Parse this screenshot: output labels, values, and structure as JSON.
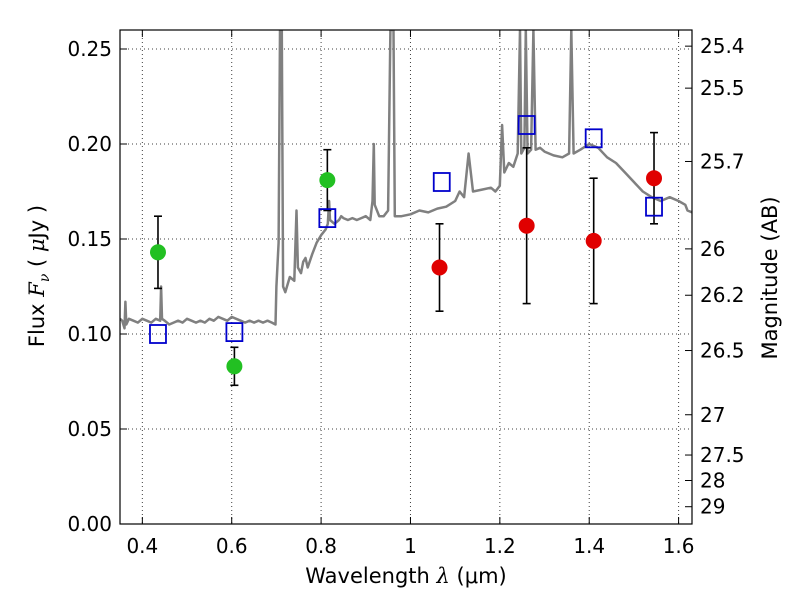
{
  "chart_data": {
    "type": "scatter",
    "title": "",
    "xlabel": "Wavelength  λ (μm)",
    "xlabel_parts": {
      "text": "Wavelength  ",
      "sym": "λ",
      "unit": "(μm)"
    },
    "ylabel": "Flux  Fν  (μJy)",
    "ylabel_parts": {
      "text": "Flux  ",
      "sym": "F",
      "sub": "ν",
      "paren_open": "(",
      "mu": "μ",
      "unit": "Jy",
      "paren_close": ")"
    },
    "y2label": "Magnitude (AB)",
    "xlim": [
      0.35,
      1.63
    ],
    "ylim": [
      0.0,
      0.26
    ],
    "xticks": [
      0.4,
      0.6,
      0.8,
      1.0,
      1.2,
      1.4,
      1.6
    ],
    "xtick_labels": [
      "0.4",
      "0.6",
      "0.8",
      "1",
      "1.2",
      "1.4",
      "1.6"
    ],
    "yticks": [
      0.0,
      0.05,
      0.1,
      0.15,
      0.2,
      0.25
    ],
    "ytick_labels": [
      "0.00",
      "0.05",
      "0.10",
      "0.15",
      "0.20",
      "0.25"
    ],
    "magnitude_ticks": [
      {
        "label": "25.4",
        "flux": 0.2515
      },
      {
        "label": "25.5",
        "flux": 0.2294
      },
      {
        "label": "25.7",
        "flux": 0.1908
      },
      {
        "label": "26",
        "flux": 0.1448
      },
      {
        "label": "26.2",
        "flux": 0.1204
      },
      {
        "label": "26.5",
        "flux": 0.0913
      },
      {
        "label": "27",
        "flux": 0.0575
      },
      {
        "label": "27.5",
        "flux": 0.0363
      },
      {
        "label": "28",
        "flux": 0.0229
      },
      {
        "label": "29",
        "flux": 0.0091
      }
    ],
    "grid": true,
    "colors": {
      "model": "#808080",
      "green": "#22c022",
      "red": "#e00000",
      "box": "#0000cc",
      "errorbar": "#000000"
    },
    "series": [
      {
        "marker": "circle",
        "color": "#22c022",
        "points": [
          {
            "x": 0.435,
            "y": 0.143,
            "err": 0.019
          },
          {
            "x": 0.606,
            "y": 0.083,
            "err": 0.01
          },
          {
            "x": 0.814,
            "y": 0.181,
            "err": 0.016
          }
        ]
      },
      {
        "marker": "circle",
        "color": "#e00000",
        "points": [
          {
            "x": 1.065,
            "y": 0.135,
            "err": 0.023
          },
          {
            "x": 1.26,
            "y": 0.157,
            "err": 0.041
          },
          {
            "x": 1.41,
            "y": 0.149,
            "err": 0.033
          },
          {
            "x": 1.545,
            "y": 0.182,
            "err": 0.024
          }
        ]
      },
      {
        "marker": "square",
        "color": "#0000cc",
        "points": [
          {
            "x": 0.435,
            "y": 0.1
          },
          {
            "x": 0.606,
            "y": 0.101
          },
          {
            "x": 0.814,
            "y": 0.161
          },
          {
            "x": 1.07,
            "y": 0.18
          },
          {
            "x": 1.26,
            "y": 0.21
          },
          {
            "x": 1.41,
            "y": 0.203
          },
          {
            "x": 1.545,
            "y": 0.167
          }
        ]
      },
      {
        "marker": "line",
        "color": "#808080",
        "points": [
          [
            0.35,
            0.108
          ],
          [
            0.355,
            0.107
          ],
          [
            0.36,
            0.103
          ],
          [
            0.362,
            0.117
          ],
          [
            0.364,
            0.105
          ],
          [
            0.37,
            0.108
          ],
          [
            0.38,
            0.107
          ],
          [
            0.39,
            0.106
          ],
          [
            0.4,
            0.108
          ],
          [
            0.41,
            0.107
          ],
          [
            0.42,
            0.106
          ],
          [
            0.43,
            0.108
          ],
          [
            0.44,
            0.107
          ],
          [
            0.442,
            0.125
          ],
          [
            0.444,
            0.108
          ],
          [
            0.45,
            0.107
          ],
          [
            0.46,
            0.105
          ],
          [
            0.47,
            0.106
          ],
          [
            0.48,
            0.107
          ],
          [
            0.49,
            0.106
          ],
          [
            0.5,
            0.108
          ],
          [
            0.51,
            0.107
          ],
          [
            0.52,
            0.106
          ],
          [
            0.53,
            0.107
          ],
          [
            0.54,
            0.106
          ],
          [
            0.55,
            0.108
          ],
          [
            0.56,
            0.107
          ],
          [
            0.57,
            0.109
          ],
          [
            0.58,
            0.108
          ],
          [
            0.59,
            0.107
          ],
          [
            0.6,
            0.109
          ],
          [
            0.61,
            0.108
          ],
          [
            0.62,
            0.107
          ],
          [
            0.63,
            0.106
          ],
          [
            0.64,
            0.107
          ],
          [
            0.65,
            0.106
          ],
          [
            0.66,
            0.107
          ],
          [
            0.67,
            0.106
          ],
          [
            0.68,
            0.107
          ],
          [
            0.69,
            0.106
          ],
          [
            0.698,
            0.105
          ],
          [
            0.7,
            0.125
          ],
          [
            0.705,
            0.148
          ],
          [
            0.708,
            0.26
          ],
          [
            0.712,
            0.26
          ],
          [
            0.715,
            0.125
          ],
          [
            0.72,
            0.122
          ],
          [
            0.73,
            0.13
          ],
          [
            0.74,
            0.128
          ],
          [
            0.745,
            0.165
          ],
          [
            0.748,
            0.135
          ],
          [
            0.755,
            0.132
          ],
          [
            0.76,
            0.138
          ],
          [
            0.765,
            0.14
          ],
          [
            0.77,
            0.135
          ],
          [
            0.78,
            0.142
          ],
          [
            0.79,
            0.148
          ],
          [
            0.8,
            0.152
          ],
          [
            0.81,
            0.155
          ],
          [
            0.815,
            0.158
          ],
          [
            0.818,
            0.17
          ],
          [
            0.82,
            0.16
          ],
          [
            0.83,
            0.158
          ],
          [
            0.84,
            0.16
          ],
          [
            0.845,
            0.162
          ],
          [
            0.85,
            0.161
          ],
          [
            0.86,
            0.16
          ],
          [
            0.87,
            0.161
          ],
          [
            0.88,
            0.16
          ],
          [
            0.89,
            0.161
          ],
          [
            0.9,
            0.162
          ],
          [
            0.91,
            0.16
          ],
          [
            0.915,
            0.17
          ],
          [
            0.918,
            0.2
          ],
          [
            0.92,
            0.168
          ],
          [
            0.93,
            0.162
          ],
          [
            0.94,
            0.162
          ],
          [
            0.95,
            0.165
          ],
          [
            0.955,
            0.26
          ],
          [
            0.962,
            0.26
          ],
          [
            0.965,
            0.162
          ],
          [
            0.98,
            0.162
          ],
          [
            1.0,
            0.163
          ],
          [
            1.02,
            0.165
          ],
          [
            1.04,
            0.164
          ],
          [
            1.06,
            0.166
          ],
          [
            1.08,
            0.167
          ],
          [
            1.1,
            0.17
          ],
          [
            1.11,
            0.175
          ],
          [
            1.12,
            0.172
          ],
          [
            1.13,
            0.195
          ],
          [
            1.14,
            0.175
          ],
          [
            1.16,
            0.176
          ],
          [
            1.18,
            0.177
          ],
          [
            1.19,
            0.175
          ],
          [
            1.2,
            0.178
          ],
          [
            1.205,
            0.21
          ],
          [
            1.21,
            0.185
          ],
          [
            1.22,
            0.19
          ],
          [
            1.23,
            0.188
          ],
          [
            1.24,
            0.195
          ],
          [
            1.245,
            0.26
          ],
          [
            1.248,
            0.195
          ],
          [
            1.255,
            0.198
          ],
          [
            1.258,
            0.26
          ],
          [
            1.262,
            0.195
          ],
          [
            1.27,
            0.197
          ],
          [
            1.275,
            0.26
          ],
          [
            1.28,
            0.197
          ],
          [
            1.29,
            0.198
          ],
          [
            1.3,
            0.196
          ],
          [
            1.32,
            0.194
          ],
          [
            1.34,
            0.193
          ],
          [
            1.355,
            0.195
          ],
          [
            1.36,
            0.26
          ],
          [
            1.365,
            0.195
          ],
          [
            1.38,
            0.197
          ],
          [
            1.4,
            0.2
          ],
          [
            1.42,
            0.198
          ],
          [
            1.44,
            0.193
          ],
          [
            1.46,
            0.19
          ],
          [
            1.48,
            0.185
          ],
          [
            1.5,
            0.18
          ],
          [
            1.52,
            0.175
          ],
          [
            1.54,
            0.172
          ],
          [
            1.56,
            0.17
          ],
          [
            1.58,
            0.172
          ],
          [
            1.6,
            0.17
          ],
          [
            1.615,
            0.168
          ],
          [
            1.62,
            0.165
          ],
          [
            1.63,
            0.164
          ]
        ]
      }
    ]
  }
}
